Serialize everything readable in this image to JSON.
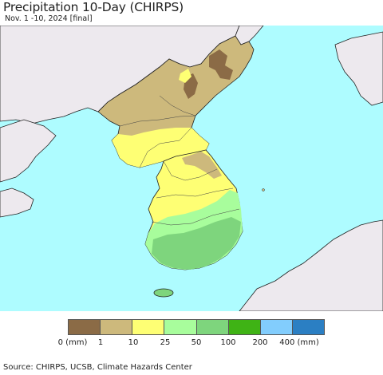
{
  "title": "Precipitation 10-Day (CHIRPS)",
  "subtitle": "Nov. 1 -10, 2024 [final]",
  "legend": {
    "colors": [
      "#8b6b46",
      "#cdb97c",
      "#feff74",
      "#a8fd9c",
      "#7ed57d",
      "#3fb315",
      "#82cdfd",
      "#2b7fc3"
    ],
    "labels": [
      "0 (mm)",
      "1",
      "10",
      "25",
      "50",
      "100",
      "200",
      "400 (mm)"
    ]
  },
  "map_colors": {
    "sea": "#aefcff",
    "foreign_land": "#ede9ee",
    "border": "#222222"
  },
  "source": "Source: CHIRPS, UCSB, Climate Hazards Center"
}
